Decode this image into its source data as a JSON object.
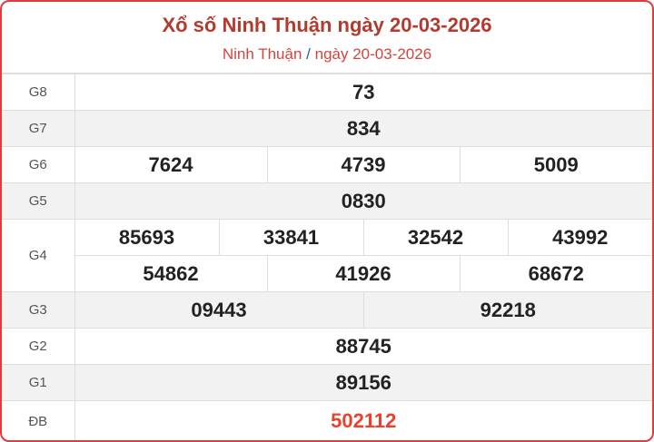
{
  "header": {
    "title": "Xổ số Ninh Thuận ngày 20-03-2026",
    "breadcrumb_province": "Ninh Thuận",
    "breadcrumb_separator": "/",
    "breadcrumb_date": "ngày 20-03-2026"
  },
  "prizes": [
    {
      "label": "G8",
      "numbers": [
        "73"
      ]
    },
    {
      "label": "G7",
      "numbers": [
        "834"
      ]
    },
    {
      "label": "G6",
      "numbers": [
        "7624",
        "4739",
        "5009"
      ]
    },
    {
      "label": "G5",
      "numbers": [
        "0830"
      ]
    },
    {
      "label": "G4",
      "numbers": [
        "85693",
        "33841",
        "32542",
        "43992",
        "54862",
        "41926",
        "68672"
      ]
    },
    {
      "label": "G3",
      "numbers": [
        "09443",
        "92218"
      ]
    },
    {
      "label": "G2",
      "numbers": [
        "88745"
      ]
    },
    {
      "label": "G1",
      "numbers": [
        "89156"
      ]
    },
    {
      "label": "ĐB",
      "numbers": [
        "502112"
      ]
    }
  ],
  "colors": {
    "accent": "#e33b3b",
    "title": "#b33a2e",
    "special": "#e8412c"
  }
}
